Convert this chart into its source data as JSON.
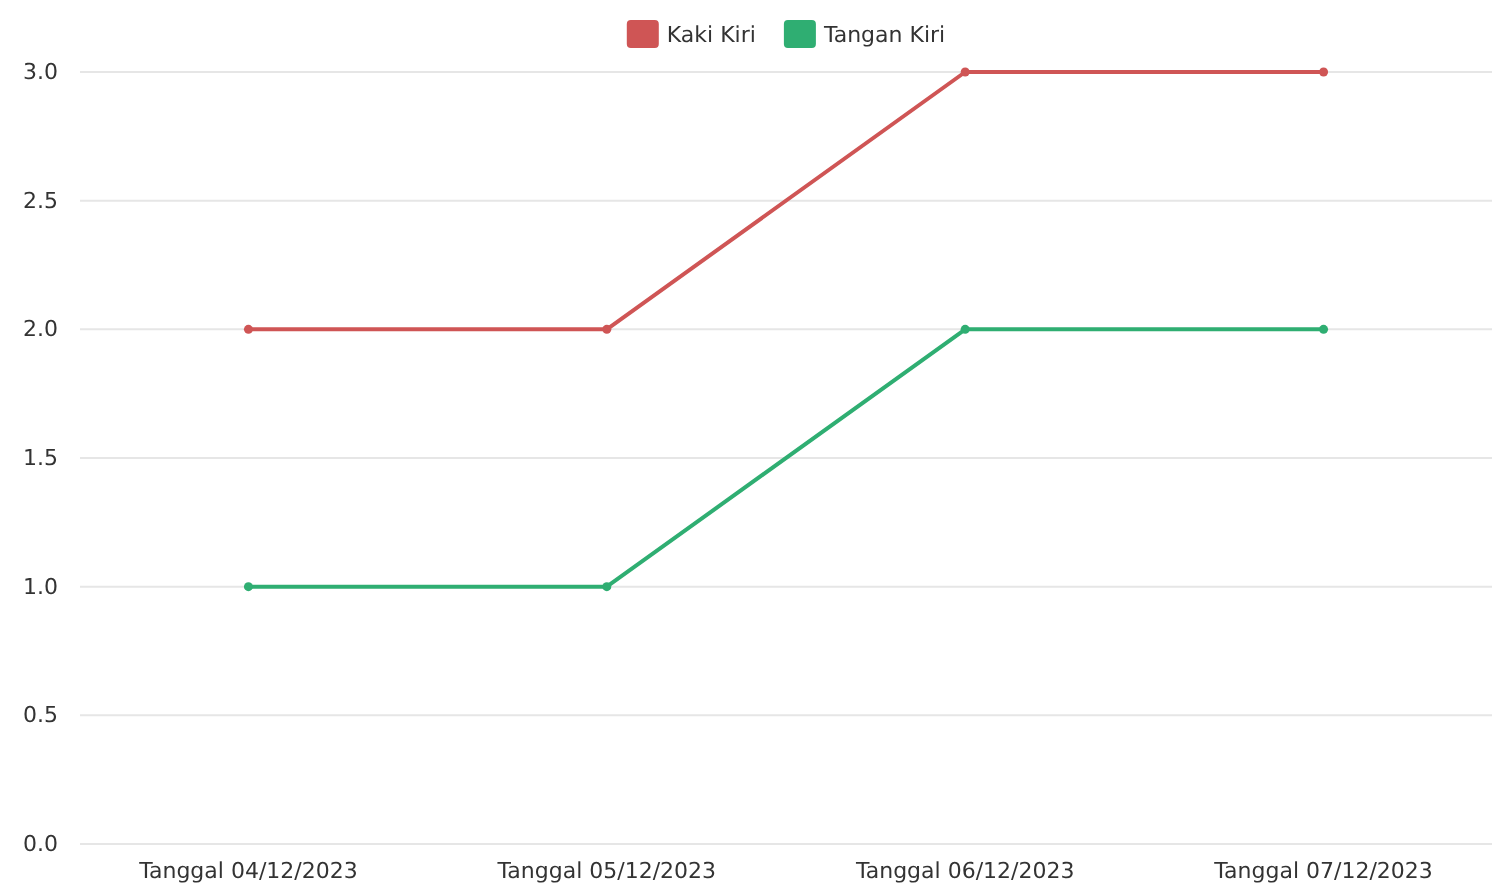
{
  "chart_data": {
    "type": "line",
    "categories": [
      "Tanggal 04/12/2023",
      "Tanggal 05/12/2023",
      "Tanggal 06/12/2023",
      "Tanggal 07/12/2023"
    ],
    "series": [
      {
        "name": "Kaki Kiri",
        "color": "#cf5555",
        "values": [
          2,
          2,
          3,
          3
        ]
      },
      {
        "name": "Tangan Kiri",
        "color": "#2fae72",
        "values": [
          1,
          1,
          2,
          2
        ]
      }
    ],
    "ylim": [
      0,
      3
    ],
    "yticks": [
      {
        "value": 0,
        "label": "0.0"
      },
      {
        "value": 0.5,
        "label": "0.5"
      },
      {
        "value": 1,
        "label": "1.0"
      },
      {
        "value": 1.5,
        "label": "1.5"
      },
      {
        "value": 2,
        "label": "2.0"
      },
      {
        "value": 2.5,
        "label": "2.5"
      },
      {
        "value": 3,
        "label": "3.0"
      }
    ],
    "grid": "y",
    "legend": "top",
    "marker": "circle",
    "line_style": "solid"
  }
}
